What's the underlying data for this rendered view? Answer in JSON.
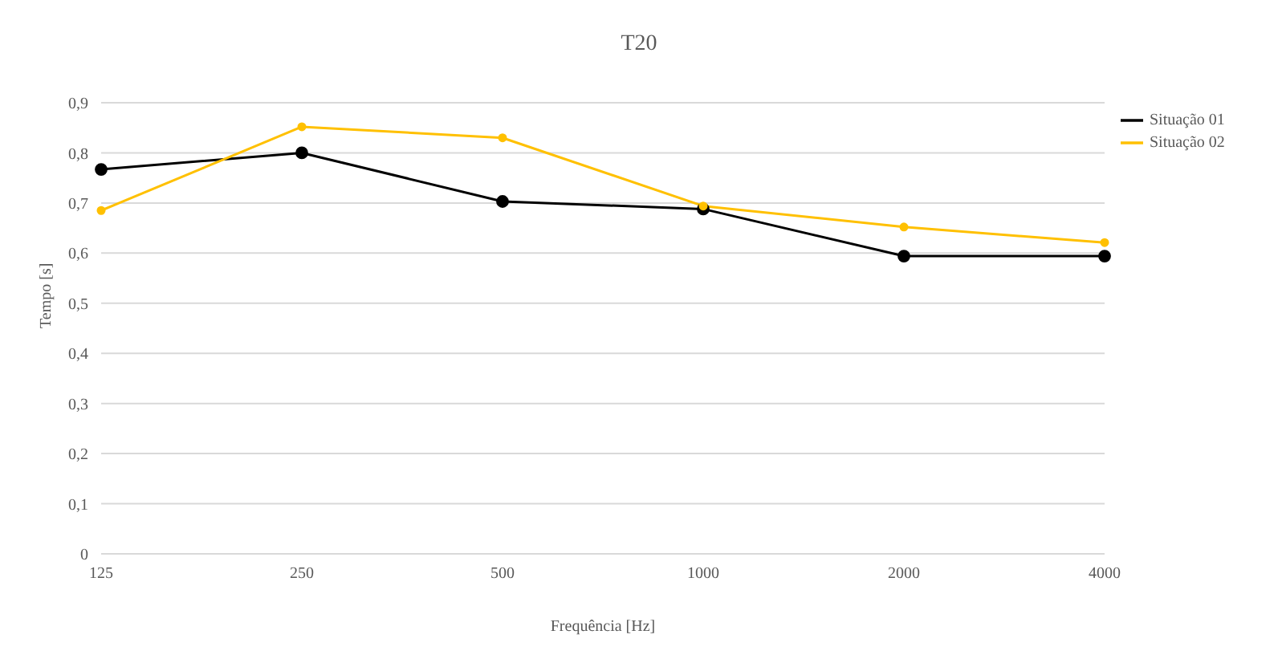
{
  "chart_data": {
    "type": "line",
    "title": "T20",
    "xlabel": "Frequência [Hz]",
    "ylabel": "Tempo [s]",
    "categories": [
      "125",
      "250",
      "500",
      "1000",
      "2000",
      "4000"
    ],
    "series": [
      {
        "name": "Situação 01",
        "color": "#000000",
        "values": [
          0.767,
          0.8,
          0.703,
          0.688,
          0.594,
          0.594
        ]
      },
      {
        "name": "Situação 02",
        "color": "#ffc000",
        "values": [
          0.685,
          0.852,
          0.83,
          0.694,
          0.652,
          0.621
        ]
      }
    ],
    "ylim": [
      0,
      0.9
    ],
    "yticks": [
      0,
      {
        "value": 0.1,
        "label": "0,1"
      },
      {
        "value": 0.2,
        "label": "0,2"
      },
      {
        "value": 0.3,
        "label": "0,3"
      },
      {
        "value": 0.4,
        "label": "0,4"
      },
      {
        "value": 0.5,
        "label": "0,5"
      },
      {
        "value": 0.6,
        "label": "0,6"
      },
      {
        "value": 0.7,
        "label": "0,7"
      },
      {
        "value": 0.8,
        "label": "0,8"
      },
      {
        "value": 0.9,
        "label": "0,9"
      }
    ],
    "grid": "y",
    "legend": "right",
    "marker": "circle",
    "line_style": "solid"
  }
}
